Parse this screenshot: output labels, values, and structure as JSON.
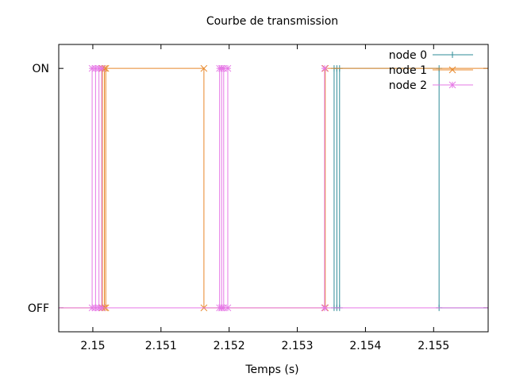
{
  "chart_data": {
    "type": "line",
    "step": true,
    "title": "Courbe de transmission",
    "xlabel": "Temps (s)",
    "ylabel": "",
    "xlim": [
      2.1495,
      2.1558
    ],
    "ylim": [
      -0.1,
      1.1
    ],
    "x_ticks": [
      2.15,
      2.151,
      2.152,
      2.153,
      2.154,
      2.155
    ],
    "x_tick_labels": [
      "2.15",
      "2.151",
      "2.152",
      "2.153",
      "2.154",
      "2.155"
    ],
    "y_ticks": [
      0,
      1
    ],
    "y_tick_labels": [
      "OFF",
      "ON"
    ],
    "grid": false,
    "legend_position": "top-right",
    "series": [
      {
        "name": "node 0",
        "color": "#2e8b97",
        "marker": "plus",
        "points": [
          [
            2.15354,
            0
          ],
          [
            2.15354,
            1
          ],
          [
            2.15358,
            1
          ],
          [
            2.15358,
            0
          ],
          [
            2.15362,
            0
          ],
          [
            2.15362,
            1
          ],
          [
            2.15508,
            1
          ],
          [
            2.15508,
            0
          ],
          [
            2.1558,
            0
          ]
        ]
      },
      {
        "name": "node 1",
        "color": "#e8882a",
        "marker": "cross",
        "points": [
          [
            2.1495,
            0
          ],
          [
            2.15014,
            0
          ],
          [
            2.15014,
            1
          ],
          [
            2.15017,
            1
          ],
          [
            2.15017,
            0
          ],
          [
            2.15019,
            0
          ],
          [
            2.15019,
            1
          ],
          [
            2.15163,
            1
          ],
          [
            2.15163,
            0
          ],
          [
            2.15341,
            0
          ],
          [
            2.15341,
            1
          ],
          [
            2.1558,
            1
          ]
        ]
      },
      {
        "name": "node 2",
        "color": "#e679e6",
        "marker": "star",
        "points": [
          [
            2.1495,
            0
          ],
          [
            2.14999,
            0
          ],
          [
            2.14999,
            1
          ],
          [
            2.15004,
            1
          ],
          [
            2.15004,
            0
          ],
          [
            2.15009,
            0
          ],
          [
            2.15009,
            1
          ],
          [
            2.15013,
            1
          ],
          [
            2.15013,
            0
          ],
          [
            2.15186,
            0
          ],
          [
            2.15186,
            1
          ],
          [
            2.15189,
            1
          ],
          [
            2.15189,
            0
          ],
          [
            2.15192,
            0
          ],
          [
            2.15192,
            1
          ],
          [
            2.15198,
            1
          ],
          [
            2.15198,
            0
          ],
          [
            2.1534,
            0
          ],
          [
            2.1534,
            1
          ],
          [
            2.1534,
            0
          ],
          [
            2.1558,
            0
          ]
        ]
      }
    ]
  }
}
